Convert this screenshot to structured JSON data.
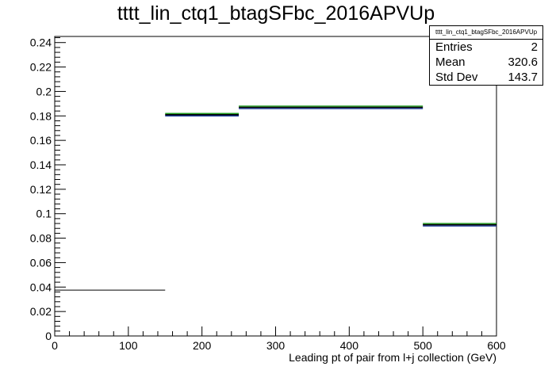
{
  "title": "tttt_lin_ctq1_btagSFbc_2016APVUp",
  "stats_box": {
    "name": "tttt_lin_ctq1_btagSFbc_2016APVUp",
    "rows": [
      {
        "label": "Entries",
        "value": "2"
      },
      {
        "label": "Mean",
        "value": "320.6"
      },
      {
        "label": "Std Dev",
        "value": "143.7"
      }
    ]
  },
  "chart_data": {
    "type": "bar",
    "subtype": "histogram",
    "title": "tttt_lin_ctq1_btagSFbc_2016APVUp",
    "xlabel": "Leading pt of pair from l+j collection (GeV)",
    "ylabel": "",
    "xlim": [
      0,
      600
    ],
    "ylim": [
      0,
      0.245
    ],
    "x_ticks": [
      0,
      100,
      200,
      300,
      400,
      500,
      600
    ],
    "y_ticks": [
      0,
      0.02,
      0.04,
      0.06,
      0.08,
      0.1,
      0.12,
      0.14,
      0.16,
      0.18,
      0.2,
      0.22,
      0.24
    ],
    "grid": false,
    "bins": [
      {
        "x0": 0,
        "x1": 150,
        "value": 0.0375
      },
      {
        "x0": 150,
        "x1": 250,
        "value": 0.181
      },
      {
        "x0": 250,
        "x1": 500,
        "value": 0.187
      },
      {
        "x0": 500,
        "x1": 600,
        "value": 0.091
      }
    ],
    "colors": {
      "primary": "#000000",
      "overlay_green": "#1f9a1f",
      "overlay_blue": "#1f3a9a"
    }
  }
}
